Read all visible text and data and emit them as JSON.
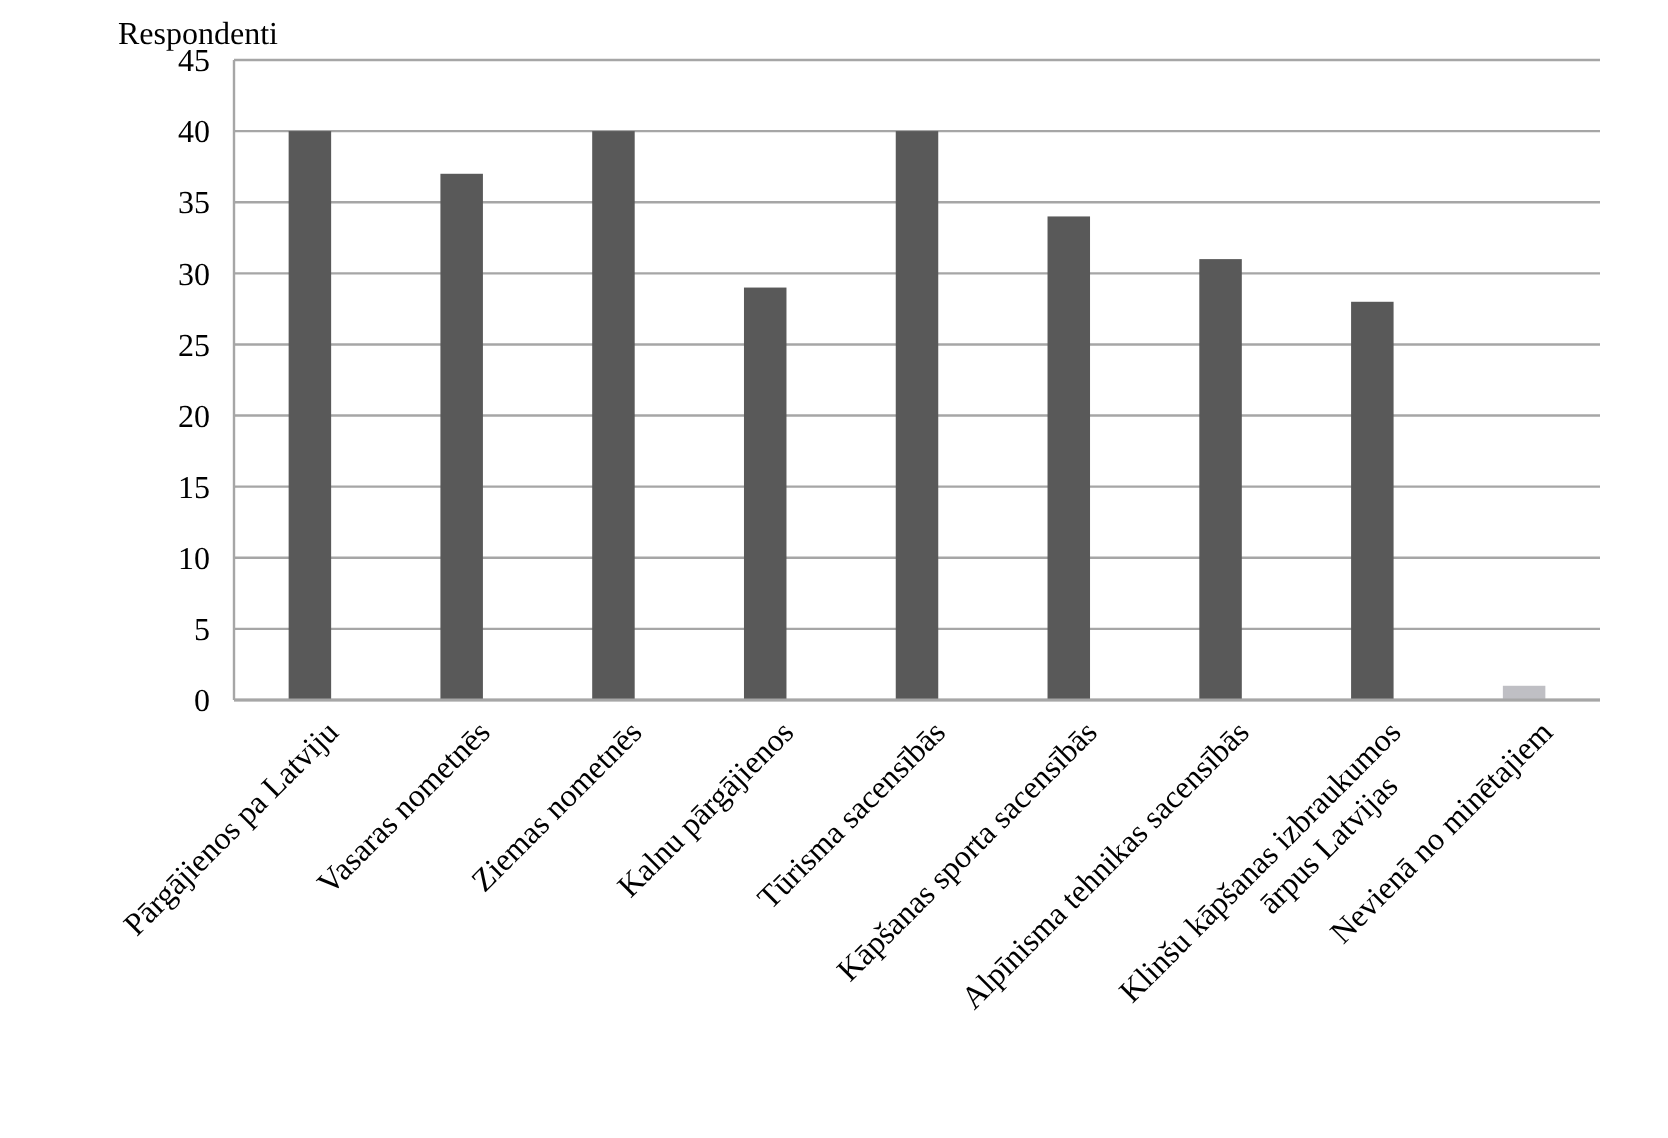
{
  "chart_data": {
    "type": "bar",
    "ylabel": "Respondenti",
    "categories": [
      "Pārgājienos pa Latviju",
      "Vasaras nometnēs",
      "Ziemas nometnēs",
      "Kalnu pārgājienos",
      "Tūrisma sacensībās",
      "Kāpšanas sporta sacensībās",
      "Alpīnisma tehnikas sacensībās",
      "Klinšu kāpšanas izbraukumos\nārpus Latvijas",
      "Nevienā no minētajiem"
    ],
    "values": [
      40,
      37,
      40,
      29,
      40,
      34,
      31,
      28,
      1
    ],
    "colors": [
      "#595959",
      "#595959",
      "#595959",
      "#595959",
      "#595959",
      "#595959",
      "#595959",
      "#595959",
      "#bfbfc4"
    ],
    "ylim": [
      0,
      45
    ],
    "yticks": [
      0,
      5,
      10,
      15,
      20,
      25,
      30,
      35,
      40,
      45
    ],
    "grid": "y"
  }
}
